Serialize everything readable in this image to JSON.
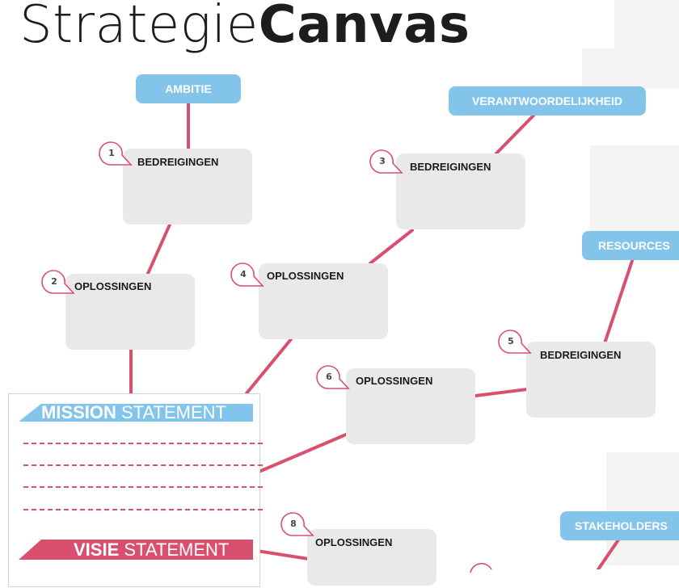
{
  "title": {
    "light": "Strategie",
    "bold": "Canvas"
  },
  "categories": {
    "ambitie": "AMBITIE",
    "verantwoordelijkheid": "VERANTWOORDELIJKHEID",
    "resources": "RESOURCES",
    "stakeholders": "STAKEHOLDERS"
  },
  "nodes": [
    {
      "number": "1",
      "label": "BEDREIGINGEN"
    },
    {
      "number": "2",
      "label": "OPLOSSINGEN"
    },
    {
      "number": "3",
      "label": "BEDREIGINGEN"
    },
    {
      "number": "4",
      "label": "OPLOSSINGEN"
    },
    {
      "number": "5",
      "label": "BEDREIGINGEN"
    },
    {
      "number": "6",
      "label": "OPLOSSINGEN"
    },
    {
      "number": "8",
      "label": "OPLOSSINGEN"
    }
  ],
  "mission": {
    "bold": "MISSION",
    "thin": "STATEMENT"
  },
  "visie": {
    "bold": "VISIE",
    "thin": "STATEMENT"
  },
  "colors": {
    "pill": "#82c4ea",
    "line": "#d9506f",
    "box": "#e9e9e9"
  }
}
